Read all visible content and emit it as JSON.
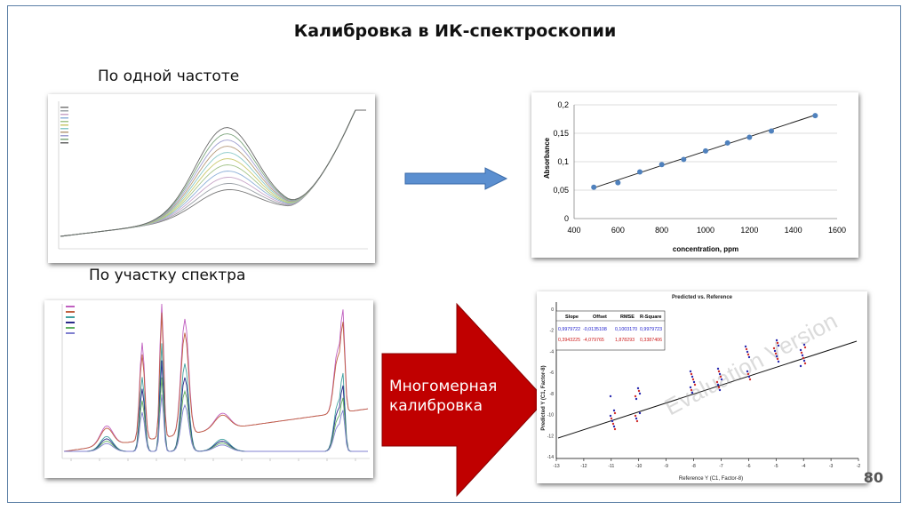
{
  "title": "Калибровка в ИК-спектроскопии",
  "labels": {
    "single_frequency": "По одной частоте",
    "spectral_region": "По участку спектра",
    "multivariate": [
      "Многомерная",
      "калибровка"
    ]
  },
  "page_number": "80",
  "colors": {
    "frame": "#5b7fa6",
    "blue_arrow": "#5b8fd0",
    "red_arrow": "#c00000",
    "chart_point": "#4f81bd"
  },
  "chart_data": {
    "type": "line",
    "x": [
      490,
      600,
      700,
      800,
      900,
      1000,
      1100,
      1200,
      1300,
      1500
    ],
    "series": [
      {
        "values": [
          0.055,
          0.063,
          0.082,
          0.095,
          0.104,
          0.119,
          0.133,
          0.143,
          0.154,
          0.181
        ]
      }
    ],
    "trendline": {
      "x": [
        490,
        1500
      ],
      "y": [
        0.054,
        0.182
      ]
    },
    "xlabel": "concentration, ppm",
    "ylabel": "Absorbance",
    "xlim": [
      400,
      1600
    ],
    "ylim": [
      0,
      0.2
    ],
    "xticks": [
      "400",
      "600",
      "800",
      "1000",
      "1200",
      "1400",
      "1600"
    ],
    "yticks": [
      "0",
      "0,05",
      "0,1",
      "0,15",
      "0,2"
    ],
    "grid": "horizontal"
  },
  "pls": {
    "title": "Predicted vs. Reference",
    "table_headers": [
      "Slope",
      "Offset",
      "RMSE",
      "R-Square"
    ],
    "row1": [
      "0,9979722",
      "-0,0135108",
      "0,1003170",
      "0,9979723"
    ],
    "row2": [
      "0,3943225",
      "-4,079765",
      "1,878293",
      "0,3387406"
    ],
    "watermark": "Evaluation Version",
    "xlabel": "Reference Y (C1, Factor-8)",
    "ylabel": "Predicted Y (C1, Factor-8)",
    "xticks": [
      "-13",
      "-12",
      "-11",
      "-10",
      "-9",
      "-8",
      "-7",
      "-6",
      "-5",
      "-4",
      "-3",
      "-2"
    ],
    "yticks": [
      "0",
      "-2",
      "-4",
      "-6",
      "-8",
      "-10",
      "-12",
      "-14"
    ]
  }
}
